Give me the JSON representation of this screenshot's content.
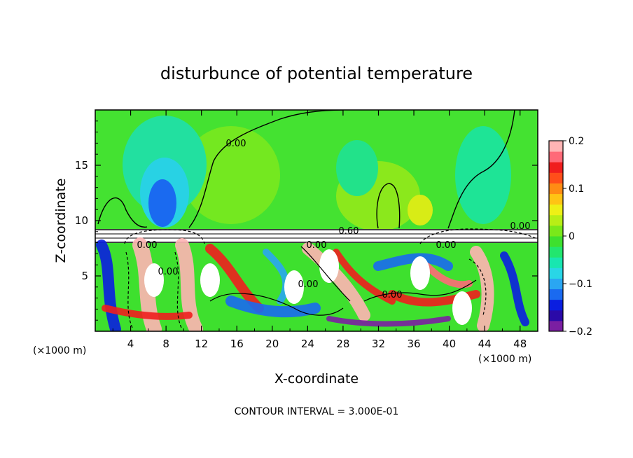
{
  "chart_data": {
    "type": "heatmap",
    "title": "disturbunce of potential temperature",
    "xlabel": "X-coordinate",
    "ylabel": "Z-coordinate",
    "x_unit_left": "(×1000 m)",
    "x_unit_right": "(×1000 m)",
    "footer": "CONTOUR INTERVAL = 3.000E-01",
    "xlim": [
      0,
      50
    ],
    "ylim": [
      0,
      20
    ],
    "x_ticks": [
      4,
      8,
      12,
      16,
      20,
      24,
      28,
      32,
      36,
      40,
      44,
      48
    ],
    "x_tick_labels": [
      "4",
      "8",
      "12",
      "16",
      "20",
      "24",
      "28",
      "32",
      "36",
      "40",
      "44",
      "48"
    ],
    "y_ticks": [
      5,
      10,
      15
    ],
    "y_tick_labels": [
      "5",
      "10",
      "15"
    ],
    "colorbar": {
      "range": [
        -0.2,
        0.2
      ],
      "ticks": [
        0.2,
        0.1,
        0,
        -0.1,
        -0.2
      ],
      "tick_labels": [
        "0.2",
        "0.1",
        "0",
        "−0.1",
        "−0.2"
      ],
      "colors": [
        "#7b1fa2",
        "#2a0aa8",
        "#0a1ee0",
        "#1a6af0",
        "#2aa6f2",
        "#29d6e6",
        "#18e6b0",
        "#22e66e",
        "#3ee02e",
        "#7ae81a",
        "#b8ee16",
        "#eef016",
        "#ffc414",
        "#ff8c14",
        "#ff4e1a",
        "#f01e1e",
        "#ff6a78",
        "#ffb4b4"
      ]
    },
    "contour_labels": [
      "0.00",
      "0.00",
      "0.60",
      "0.00",
      "0.00",
      "0.00",
      "0.00",
      "0.00",
      "0.00"
    ]
  }
}
